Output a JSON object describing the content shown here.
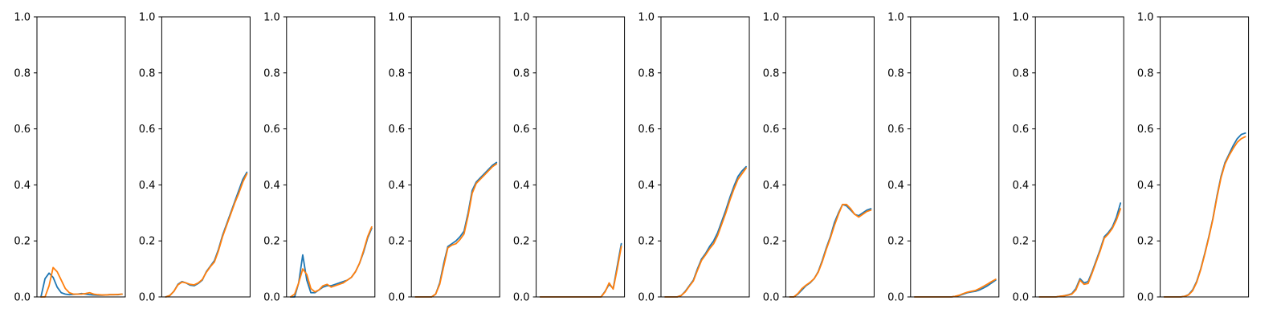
{
  "colors": {
    "series_a": "#1f77b4",
    "series_b": "#ff7f0e",
    "axes": "#000000",
    "background": "#ffffff"
  },
  "chart_data": [
    {
      "type": "line",
      "title": "",
      "xlabel": "",
      "ylabel": "",
      "ylim": [
        0,
        1
      ],
      "yticks": [
        "0.0",
        "0.2",
        "0.4",
        "0.6",
        "0.8",
        "1.0"
      ],
      "grid": false,
      "x": [
        0,
        2,
        4,
        6,
        8,
        10,
        12,
        14,
        16,
        18,
        20,
        22,
        24,
        26,
        28,
        30,
        32,
        34,
        36,
        38,
        40
      ],
      "series": [
        {
          "values": [
            0.0,
            0.065,
            0.085,
            0.07,
            0.035,
            0.015,
            0.01,
            0.008,
            0.009,
            0.01,
            0.012,
            0.01,
            0.008,
            0.007,
            0.006,
            0.006,
            0.007,
            0.008,
            0.008,
            0.008,
            0.01
          ]
        },
        {
          "values": [
            0.0,
            0.0,
            0.04,
            0.105,
            0.09,
            0.06,
            0.03,
            0.015,
            0.01,
            0.01,
            0.01,
            0.012,
            0.015,
            0.01,
            0.008,
            0.007,
            0.007,
            0.008,
            0.008,
            0.009,
            0.01
          ]
        }
      ]
    },
    {
      "type": "line",
      "title": "",
      "xlabel": "",
      "ylabel": "",
      "ylim": [
        0,
        1
      ],
      "yticks": [
        "0.0",
        "0.2",
        "0.4",
        "0.6",
        "0.8",
        "1.0"
      ],
      "grid": false,
      "x": [
        0,
        2,
        4,
        6,
        8,
        10,
        12,
        14,
        16,
        18,
        20,
        22,
        24,
        26,
        28,
        30,
        32,
        34,
        36,
        38,
        40
      ],
      "series": [
        {
          "values": [
            0.0,
            0.005,
            0.02,
            0.045,
            0.055,
            0.05,
            0.042,
            0.04,
            0.048,
            0.06,
            0.09,
            0.11,
            0.13,
            0.17,
            0.22,
            0.26,
            0.3,
            0.34,
            0.38,
            0.42,
            0.445
          ]
        },
        {
          "values": [
            0.0,
            0.005,
            0.02,
            0.043,
            0.053,
            0.05,
            0.045,
            0.043,
            0.05,
            0.062,
            0.088,
            0.108,
            0.125,
            0.165,
            0.215,
            0.255,
            0.295,
            0.335,
            0.37,
            0.41,
            0.44
          ]
        }
      ]
    },
    {
      "type": "line",
      "title": "",
      "xlabel": "",
      "ylabel": "",
      "ylim": [
        0,
        1
      ],
      "yticks": [
        "0.0",
        "0.2",
        "0.4",
        "0.6",
        "0.8",
        "1.0"
      ],
      "grid": false,
      "x": [
        0,
        2,
        4,
        6,
        8,
        10,
        12,
        14,
        16,
        18,
        20,
        22,
        24,
        26,
        28,
        30,
        32,
        34,
        36,
        38,
        40
      ],
      "series": [
        {
          "values": [
            0.0,
            0.0,
            0.05,
            0.15,
            0.06,
            0.015,
            0.015,
            0.025,
            0.035,
            0.04,
            0.04,
            0.045,
            0.05,
            0.055,
            0.06,
            0.07,
            0.09,
            0.12,
            0.16,
            0.21,
            0.245
          ]
        },
        {
          "values": [
            0.0,
            0.01,
            0.05,
            0.1,
            0.08,
            0.03,
            0.018,
            0.025,
            0.04,
            0.045,
            0.035,
            0.04,
            0.045,
            0.05,
            0.06,
            0.07,
            0.09,
            0.12,
            0.165,
            0.215,
            0.25
          ]
        }
      ]
    },
    {
      "type": "line",
      "title": "",
      "xlabel": "",
      "ylabel": "",
      "ylim": [
        0,
        1
      ],
      "yticks": [
        "0.0",
        "0.2",
        "0.4",
        "0.6",
        "0.8",
        "1.0"
      ],
      "grid": false,
      "x": [
        0,
        2,
        4,
        6,
        8,
        10,
        12,
        14,
        16,
        18,
        20,
        22,
        24,
        26,
        28,
        30,
        32,
        34,
        36,
        38,
        40
      ],
      "series": [
        {
          "values": [
            0.0,
            0.0,
            0.0,
            0.0,
            0.0,
            0.01,
            0.05,
            0.12,
            0.18,
            0.19,
            0.2,
            0.215,
            0.235,
            0.3,
            0.38,
            0.41,
            0.425,
            0.44,
            0.455,
            0.47,
            0.48
          ]
        },
        {
          "values": [
            0.0,
            0.0,
            0.0,
            0.0,
            0.0,
            0.01,
            0.045,
            0.11,
            0.175,
            0.185,
            0.19,
            0.205,
            0.225,
            0.29,
            0.37,
            0.405,
            0.42,
            0.435,
            0.45,
            0.465,
            0.475
          ]
        }
      ]
    },
    {
      "type": "line",
      "title": "",
      "xlabel": "",
      "ylabel": "",
      "ylim": [
        0,
        1
      ],
      "yticks": [
        "0.0",
        "0.2",
        "0.4",
        "0.6",
        "0.8",
        "1.0"
      ],
      "grid": false,
      "x": [
        0,
        2,
        4,
        6,
        8,
        10,
        12,
        14,
        16,
        18,
        20,
        22,
        24,
        26,
        28,
        30,
        32,
        34,
        36,
        38,
        40
      ],
      "series": [
        {
          "values": [
            0.0,
            0.0,
            0.0,
            0.0,
            0.0,
            0.0,
            0.0,
            0.0,
            0.0,
            0.0,
            0.0,
            0.0,
            0.0,
            0.0,
            0.0,
            0.0,
            0.02,
            0.045,
            0.03,
            0.11,
            0.19
          ]
        },
        {
          "values": [
            0.0,
            0.0,
            0.0,
            0.0,
            0.0,
            0.0,
            0.0,
            0.0,
            0.0,
            0.0,
            0.0,
            0.0,
            0.0,
            0.0,
            0.0,
            0.0,
            0.018,
            0.05,
            0.028,
            0.1,
            0.18
          ]
        }
      ]
    },
    {
      "type": "line",
      "title": "",
      "xlabel": "",
      "ylabel": "",
      "ylim": [
        0,
        1
      ],
      "yticks": [
        "0.0",
        "0.2",
        "0.4",
        "0.6",
        "0.8",
        "1.0"
      ],
      "grid": false,
      "x": [
        0,
        2,
        4,
        6,
        8,
        10,
        12,
        14,
        16,
        18,
        20,
        22,
        24,
        26,
        28,
        30,
        32,
        34,
        36,
        38,
        40
      ],
      "series": [
        {
          "values": [
            0.0,
            0.0,
            0.0,
            0.0,
            0.005,
            0.02,
            0.04,
            0.06,
            0.1,
            0.135,
            0.155,
            0.18,
            0.2,
            0.23,
            0.27,
            0.31,
            0.355,
            0.395,
            0.43,
            0.45,
            0.465
          ]
        },
        {
          "values": [
            0.0,
            0.0,
            0.0,
            0.0,
            0.005,
            0.018,
            0.038,
            0.057,
            0.095,
            0.13,
            0.15,
            0.172,
            0.19,
            0.22,
            0.26,
            0.3,
            0.345,
            0.385,
            0.42,
            0.44,
            0.46
          ]
        }
      ]
    },
    {
      "type": "line",
      "title": "",
      "xlabel": "",
      "ylabel": "",
      "ylim": [
        0,
        1
      ],
      "yticks": [
        "0.0",
        "0.2",
        "0.4",
        "0.6",
        "0.8",
        "1.0"
      ],
      "grid": false,
      "x": [
        0,
        2,
        4,
        6,
        8,
        10,
        12,
        14,
        16,
        18,
        20,
        22,
        24,
        26,
        28,
        30,
        32,
        34,
        36,
        38,
        40
      ],
      "series": [
        {
          "values": [
            0.0,
            0.0,
            0.01,
            0.025,
            0.04,
            0.05,
            0.065,
            0.09,
            0.13,
            0.175,
            0.215,
            0.265,
            0.3,
            0.33,
            0.325,
            0.31,
            0.295,
            0.29,
            0.3,
            0.31,
            0.315
          ]
        },
        {
          "values": [
            0.0,
            0.0,
            0.012,
            0.03,
            0.042,
            0.052,
            0.065,
            0.088,
            0.125,
            0.17,
            0.21,
            0.255,
            0.295,
            0.33,
            0.33,
            0.315,
            0.295,
            0.285,
            0.295,
            0.305,
            0.31
          ]
        }
      ]
    },
    {
      "type": "line",
      "title": "",
      "xlabel": "",
      "ylabel": "",
      "ylim": [
        0,
        1
      ],
      "yticks": [
        "0.0",
        "0.2",
        "0.4",
        "0.6",
        "0.8",
        "1.0"
      ],
      "grid": false,
      "x": [
        0,
        2,
        4,
        6,
        8,
        10,
        12,
        14,
        16,
        18,
        20,
        22,
        24,
        26,
        28,
        30,
        32,
        34,
        36,
        38,
        40
      ],
      "series": [
        {
          "values": [
            0.0,
            0.0,
            0.0,
            0.0,
            0.0,
            0.0,
            0.0,
            0.0,
            0.0,
            0.0,
            0.002,
            0.005,
            0.01,
            0.015,
            0.018,
            0.02,
            0.025,
            0.032,
            0.04,
            0.05,
            0.06
          ]
        },
        {
          "values": [
            0.0,
            0.0,
            0.0,
            0.0,
            0.0,
            0.0,
            0.0,
            0.0,
            0.0,
            0.0,
            0.002,
            0.006,
            0.012,
            0.017,
            0.02,
            0.023,
            0.03,
            0.038,
            0.046,
            0.055,
            0.063
          ]
        }
      ]
    },
    {
      "type": "line",
      "title": "",
      "xlabel": "",
      "ylabel": "",
      "ylim": [
        0,
        1
      ],
      "yticks": [
        "0.0",
        "0.2",
        "0.4",
        "0.6",
        "0.8",
        "1.0"
      ],
      "grid": false,
      "x": [
        0,
        2,
        4,
        6,
        8,
        10,
        12,
        14,
        16,
        18,
        20,
        22,
        24,
        26,
        28,
        30,
        32,
        34,
        36,
        38,
        40
      ],
      "series": [
        {
          "values": [
            0.0,
            0.0,
            0.0,
            0.0,
            0.0,
            0.002,
            0.004,
            0.007,
            0.012,
            0.03,
            0.065,
            0.05,
            0.055,
            0.09,
            0.13,
            0.17,
            0.215,
            0.23,
            0.25,
            0.285,
            0.335
          ]
        },
        {
          "values": [
            0.0,
            0.0,
            0.0,
            0.0,
            0.0,
            0.002,
            0.004,
            0.006,
            0.01,
            0.025,
            0.06,
            0.045,
            0.048,
            0.085,
            0.125,
            0.165,
            0.21,
            0.225,
            0.245,
            0.275,
            0.315
          ]
        }
      ]
    },
    {
      "type": "line",
      "title": "",
      "xlabel": "",
      "ylabel": "",
      "ylim": [
        0,
        1
      ],
      "yticks": [
        "0.0",
        "0.2",
        "0.4",
        "0.6",
        "0.8",
        "1.0"
      ],
      "grid": false,
      "x": [
        0,
        2,
        4,
        6,
        8,
        10,
        12,
        14,
        16,
        18,
        20,
        22,
        24,
        26,
        28,
        30,
        32,
        34,
        36,
        38,
        40
      ],
      "series": [
        {
          "values": [
            0.0,
            0.0,
            0.0,
            0.0,
            0.0,
            0.002,
            0.008,
            0.025,
            0.055,
            0.1,
            0.155,
            0.215,
            0.28,
            0.36,
            0.43,
            0.48,
            0.51,
            0.54,
            0.565,
            0.58,
            0.585
          ]
        },
        {
          "values": [
            0.0,
            0.0,
            0.0,
            0.0,
            0.0,
            0.002,
            0.007,
            0.022,
            0.052,
            0.097,
            0.152,
            0.212,
            0.277,
            0.355,
            0.425,
            0.475,
            0.505,
            0.53,
            0.552,
            0.565,
            0.572
          ]
        }
      ]
    }
  ]
}
